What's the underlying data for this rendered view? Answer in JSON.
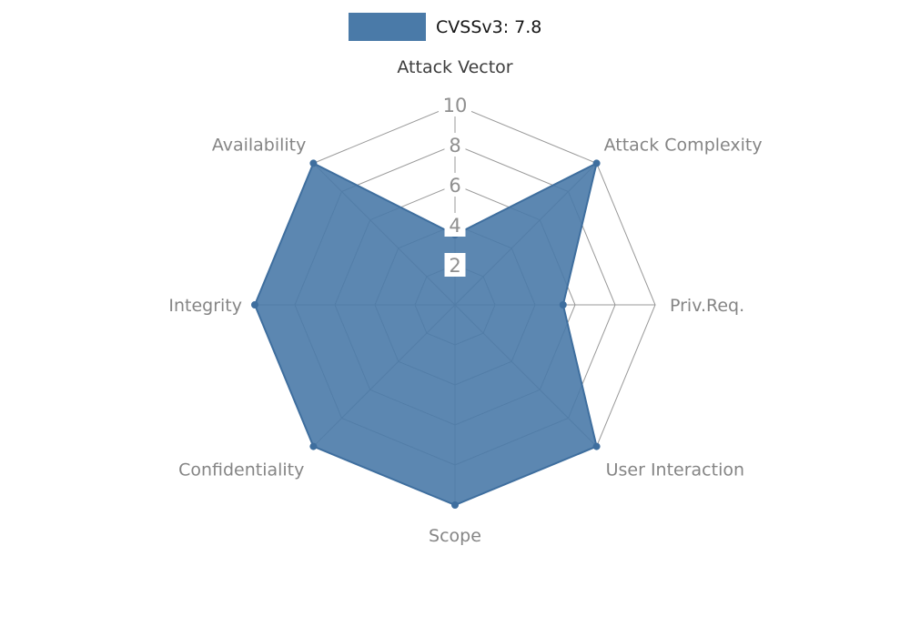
{
  "legend": {
    "label": "CVSSv3: 7.8",
    "swatch_color": "#4a7aa8"
  },
  "chart_data": {
    "type": "radar",
    "title": "CVSSv3: 7.8",
    "categories": [
      "Attack Vector",
      "Attack Complexity",
      "Priv.Req.",
      "User Interaction",
      "Scope",
      "Confidentiality",
      "Integrity",
      "Availability"
    ],
    "series": [
      {
        "name": "CVSSv3: 7.8",
        "values": [
          3.5,
          10,
          5.4,
          10,
          10,
          10,
          10,
          10
        ]
      }
    ],
    "ticks": [
      2,
      4,
      6,
      8,
      10
    ],
    "max": 10,
    "axis_range": [
      0,
      10
    ],
    "grid": "spider-web",
    "legend_position": "top",
    "fill_color": "#4a7aa8",
    "fill_opacity": 0.9,
    "stroke_color": "#3e6e9e",
    "grid_color": "#999999",
    "tick_label_color": "#8f8f8f",
    "axis_label_color": "#858585",
    "first_axis_label_color": "#3d3d3d"
  }
}
